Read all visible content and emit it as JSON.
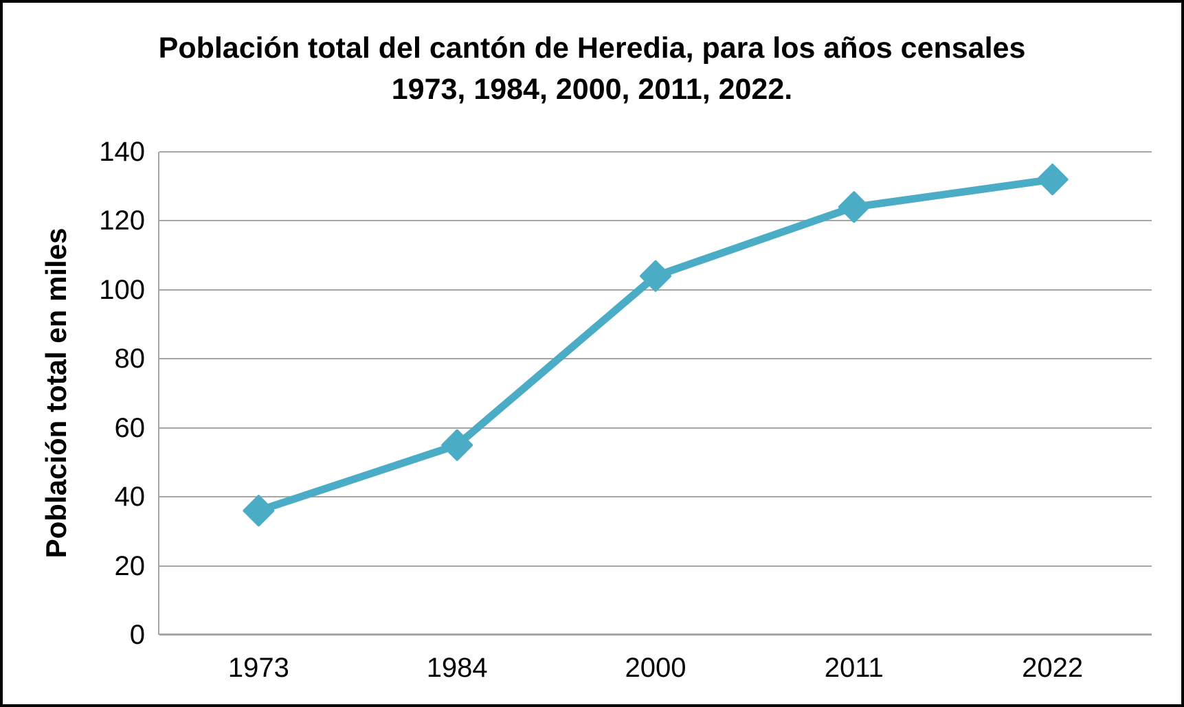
{
  "chart_data": {
    "type": "line",
    "title_line1": "Población total del cantón de Heredia, para los años censales",
    "title_line2": "1973, 1984, 2000, 2011, 2022.",
    "ylabel": "Población total en miles",
    "xlabel": "",
    "categories": [
      "1973",
      "1984",
      "2000",
      "2011",
      "2022"
    ],
    "values": [
      36,
      55,
      104,
      124,
      132
    ],
    "ylim": [
      0,
      140
    ],
    "ytick_step": 20,
    "yticks": [
      0,
      20,
      40,
      60,
      80,
      100,
      120,
      140
    ],
    "grid": "horizontal",
    "legend_position": "none",
    "marker_shape": "diamond",
    "colors": {
      "line": "#4BACC6",
      "marker": "#4BACC6",
      "grid": "#A6A6A6",
      "axis": "#A6A6A6",
      "text": "#000000",
      "background": "#FFFFFF",
      "frame_border": "#000000"
    }
  }
}
